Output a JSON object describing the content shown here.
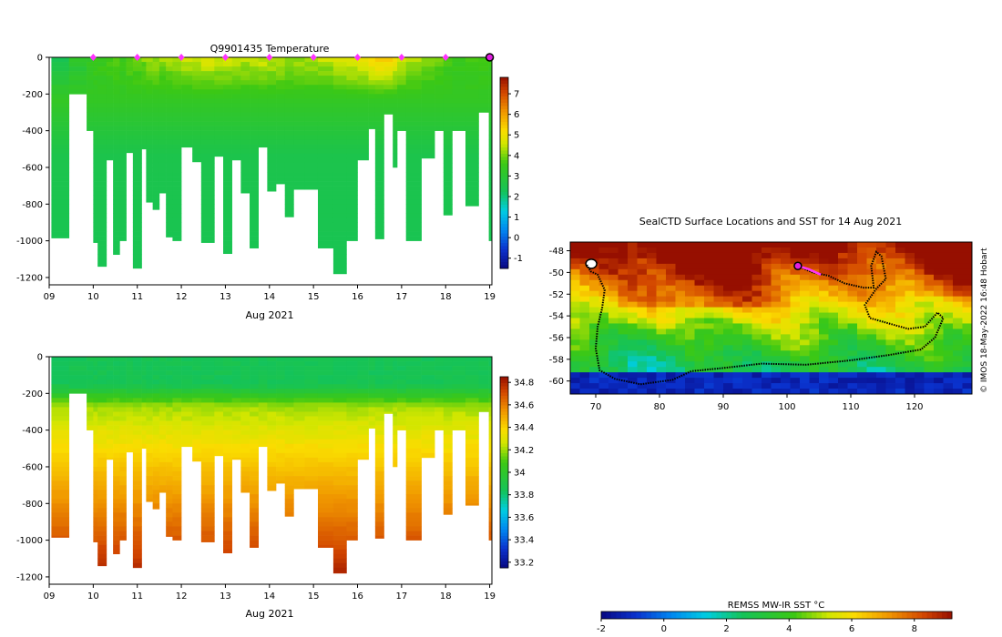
{
  "chart_data": [
    {
      "type": "heatmap",
      "title": "Q9901435  Temperature",
      "xlabel": "Aug 2021",
      "ylabel": "",
      "xlim": [
        9,
        19.05
      ],
      "ylim": [
        -1240,
        0
      ],
      "x_ticks": [
        "09",
        "10",
        "11",
        "12",
        "13",
        "14",
        "15",
        "16",
        "17",
        "18",
        "19"
      ],
      "y_ticks": [
        "0",
        "-200",
        "-400",
        "-600",
        "-800",
        "-1000",
        "-1200"
      ],
      "colorbar": {
        "min": -1.5,
        "max": 7.8,
        "ticks": [
          "-1",
          "0",
          "1",
          "2",
          "3",
          "4",
          "5",
          "6",
          "7"
        ]
      },
      "marker_days": [
        10,
        11,
        12,
        13,
        14,
        15,
        16,
        17,
        18
      ],
      "current_day": 19,
      "profiles": [
        {
          "day": 9.05,
          "depth": 985,
          "surface": 2.6
        },
        {
          "day": 9.45,
          "depth": 200,
          "surface": 3.0
        },
        {
          "day": 9.85,
          "depth": 400,
          "surface": 3.4
        },
        {
          "day": 10.0,
          "depth": 1010,
          "surface": 3.5
        },
        {
          "day": 10.1,
          "depth": 1140,
          "surface": 3.5
        },
        {
          "day": 10.3,
          "depth": 560,
          "surface": 3.6
        },
        {
          "day": 10.45,
          "depth": 1075,
          "surface": 3.7
        },
        {
          "day": 10.6,
          "depth": 1000,
          "surface": 3.6
        },
        {
          "day": 10.75,
          "depth": 520,
          "surface": 3.8
        },
        {
          "day": 10.9,
          "depth": 1150,
          "surface": 3.9
        },
        {
          "day": 11.1,
          "depth": 500,
          "surface": 4.0
        },
        {
          "day": 11.2,
          "depth": 790,
          "surface": 4.1
        },
        {
          "day": 11.35,
          "depth": 830,
          "surface": 4.2
        },
        {
          "day": 11.5,
          "depth": 740,
          "surface": 4.1
        },
        {
          "day": 11.65,
          "depth": 980,
          "surface": 4.2
        },
        {
          "day": 11.8,
          "depth": 1000,
          "surface": 4.3
        },
        {
          "day": 12.0,
          "depth": 490,
          "surface": 4.4
        },
        {
          "day": 12.25,
          "depth": 570,
          "surface": 4.5
        },
        {
          "day": 12.45,
          "depth": 1010,
          "surface": 4.6
        },
        {
          "day": 12.75,
          "depth": 540,
          "surface": 4.5
        },
        {
          "day": 12.95,
          "depth": 1070,
          "surface": 4.5
        },
        {
          "day": 13.15,
          "depth": 560,
          "surface": 4.4
        },
        {
          "day": 13.35,
          "depth": 740,
          "surface": 4.4
        },
        {
          "day": 13.55,
          "depth": 1040,
          "surface": 4.5
        },
        {
          "day": 13.75,
          "depth": 490,
          "surface": 4.5
        },
        {
          "day": 13.95,
          "depth": 730,
          "surface": 4.4
        },
        {
          "day": 14.15,
          "depth": 690,
          "surface": 4.3
        },
        {
          "day": 14.35,
          "depth": 870,
          "surface": 4.3
        },
        {
          "day": 14.55,
          "depth": 720,
          "surface": 4.2
        },
        {
          "day": 14.8,
          "depth": 720,
          "surface": 4.3
        },
        {
          "day": 15.1,
          "depth": 1040,
          "surface": 4.4
        },
        {
          "day": 15.45,
          "depth": 1180,
          "surface": 4.6
        },
        {
          "day": 15.75,
          "depth": 1000,
          "surface": 4.8
        },
        {
          "day": 16.0,
          "depth": 560,
          "surface": 5.0
        },
        {
          "day": 16.25,
          "depth": 390,
          "surface": 5.3
        },
        {
          "day": 16.4,
          "depth": 990,
          "surface": 5.4
        },
        {
          "day": 16.6,
          "depth": 310,
          "surface": 5.2
        },
        {
          "day": 16.8,
          "depth": 600,
          "surface": 4.9
        },
        {
          "day": 16.9,
          "depth": 400,
          "surface": 4.6
        },
        {
          "day": 17.1,
          "depth": 1000,
          "surface": 4.3
        },
        {
          "day": 17.45,
          "depth": 550,
          "surface": 4.0
        },
        {
          "day": 17.75,
          "depth": 400,
          "surface": 3.8
        },
        {
          "day": 17.95,
          "depth": 860,
          "surface": 3.7
        },
        {
          "day": 18.15,
          "depth": 400,
          "surface": 3.6
        },
        {
          "day": 18.45,
          "depth": 810,
          "surface": 3.6
        },
        {
          "day": 18.75,
          "depth": 300,
          "surface": 3.5
        },
        {
          "day": 18.98,
          "depth": 1000,
          "surface": 3.5
        }
      ]
    },
    {
      "type": "heatmap",
      "title": "",
      "xlabel": "Aug 2021",
      "ylabel": "",
      "xlim": [
        9,
        19.05
      ],
      "ylim": [
        -1240,
        0
      ],
      "x_ticks": [
        "09",
        "10",
        "11",
        "12",
        "13",
        "14",
        "15",
        "16",
        "17",
        "18",
        "19"
      ],
      "y_ticks": [
        "0",
        "-200",
        "-400",
        "-600",
        "-800",
        "-1000",
        "-1200"
      ],
      "colorbar": {
        "min": 33.15,
        "max": 34.85,
        "ticks": [
          "33.2",
          "33.4",
          "33.6",
          "33.8",
          "34",
          "34.2",
          "34.4",
          "34.6",
          "34.8"
        ]
      }
    },
    {
      "type": "heatmap",
      "title": "SealCTD Surface Locations and SST for 14 Aug 2021",
      "xlabel": "",
      "ylabel": "",
      "xlim": [
        66,
        129
      ],
      "ylim": [
        -61.2,
        -47.2
      ],
      "x_ticks": [
        "70",
        "80",
        "90",
        "100",
        "110",
        "120"
      ],
      "y_ticks": [
        "-48",
        "-50",
        "-52",
        "-54",
        "-56",
        "-58",
        "-60"
      ],
      "colorbar": {
        "label": "REMSS MW-IR SST °C",
        "min": -2,
        "max": 9.2,
        "ticks": [
          "-2",
          "0",
          "2",
          "4",
          "6",
          "8"
        ]
      },
      "side_credit": "© IMOS 18-May-2022 16:48 Hobart",
      "track": [
        [
          68.6,
          -49.3
        ],
        [
          69.2,
          -49.9
        ],
        [
          70.3,
          -50.2
        ],
        [
          71.4,
          -51.6
        ],
        [
          71.0,
          -53.3
        ],
        [
          70.3,
          -55.0
        ],
        [
          70.0,
          -57.0
        ],
        [
          70.6,
          -59.0
        ],
        [
          73.0,
          -59.8
        ],
        [
          77.0,
          -60.3
        ],
        [
          82.0,
          -59.9
        ],
        [
          85.0,
          -59.1
        ],
        [
          90.0,
          -58.8
        ],
        [
          96.0,
          -58.4
        ],
        [
          103.0,
          -58.5
        ],
        [
          110.0,
          -58.1
        ],
        [
          116.0,
          -57.6
        ],
        [
          121.0,
          -57.1
        ],
        [
          123.2,
          -56.0
        ],
        [
          124.5,
          -54.2
        ],
        [
          123.6,
          -53.7
        ],
        [
          121.6,
          -55.0
        ],
        [
          119.0,
          -55.2
        ],
        [
          116.0,
          -54.7
        ],
        [
          113.0,
          -54.2
        ],
        [
          112.2,
          -53.0
        ],
        [
          114.0,
          -51.5
        ],
        [
          115.5,
          -50.6
        ],
        [
          114.8,
          -48.5
        ],
        [
          114.0,
          -48.1
        ],
        [
          113.2,
          -49.4
        ],
        [
          113.6,
          -51.4
        ],
        [
          112.0,
          -51.4
        ],
        [
          109.0,
          -51.0
        ],
        [
          106.5,
          -50.3
        ],
        [
          104.0,
          -50.0
        ],
        [
          101.7,
          -49.4
        ]
      ],
      "recent_track": [
        [
          101.7,
          -49.4
        ],
        [
          103.4,
          -49.7
        ],
        [
          105.3,
          -50.2
        ]
      ],
      "current_position": [
        101.7,
        -49.4
      ],
      "landmass": [
        69.3,
        -49.2
      ]
    }
  ]
}
